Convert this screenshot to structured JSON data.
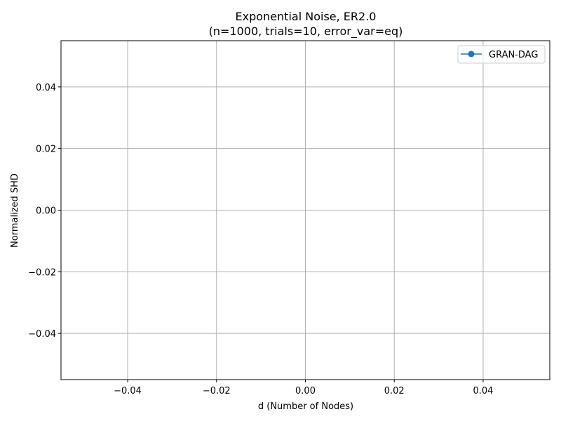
{
  "chart_data": {
    "type": "line",
    "title": "Exponential Noise, ER2.0",
    "subtitle": "(n=1000, trials=10, error_var=eq)",
    "xlabel": "d (Number of Nodes)",
    "ylabel": "Normalized SHD",
    "xlim": [
      -0.055,
      0.055
    ],
    "ylim": [
      -0.055,
      0.055
    ],
    "xticks": [
      -0.04,
      -0.02,
      0.0,
      0.02,
      0.04
    ],
    "yticks": [
      -0.04,
      -0.02,
      0.0,
      0.02,
      0.04
    ],
    "xtick_labels": [
      "−0.04",
      "−0.02",
      "0.00",
      "0.02",
      "0.04"
    ],
    "ytick_labels": [
      "−0.04",
      "−0.02",
      "0.00",
      "0.02",
      "0.04"
    ],
    "grid": true,
    "legend_position": "top-right",
    "series": [
      {
        "name": "GRAN-DAG",
        "color": "#1f77b4",
        "marker": "circle",
        "x": [],
        "y": []
      }
    ]
  }
}
